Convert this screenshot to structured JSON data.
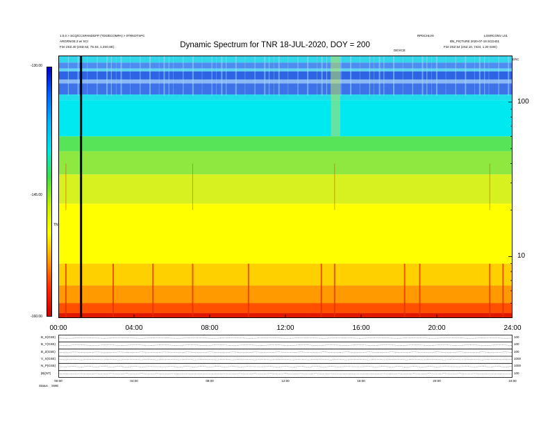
{
  "header": {
    "top_left_line1": "1.0.0 > SCQ/CCSPANDGFP (TDS/ECOMPA) > 0TRKDTSPC",
    "top_left_line2": "ARGRNGE.3 w/ SCI",
    "top_left_line3": "Fire   2SZ.40 (2SD.53, 7S.53, 1.2S0.SE)",
    "top_right_line1": "RPDCHLV0",
    "top_right_line1b": "LOSRCONV L01",
    "top_right_line2": "BN_PICTURE  2020-07-19 SCD401",
    "top_right_line3": "Fire   2SZ.54 (2SZ.10, 7424, 1.20 GSE)",
    "top_mid_small": "DEVICE",
    "corner_small": "ERC"
  },
  "chart_data": {
    "type": "heatmap",
    "title": "Dynamic Spectrum for TNR 18-JUL-2020, DOY = 200",
    "x_tick_labels": [
      "00:00",
      "04:00",
      "08:00",
      "12:00",
      "16:00",
      "20:00",
      "24:00"
    ],
    "x_range_hours": [
      0,
      24
    ],
    "y_scale": "log",
    "y_tick_labels": [
      "100",
      "10"
    ],
    "y_ticks": [
      100,
      10
    ],
    "y_range": [
      4,
      200
    ],
    "colorbar": {
      "label": "TNR",
      "ticks": [
        "-130.00",
        "-145.00",
        "-160.00"
      ],
      "range": [
        -160,
        -130
      ],
      "colors": [
        "#c80000",
        "#ff2800",
        "#ff9a00",
        "#ffff00",
        "#c8f000",
        "#40e040",
        "#00e6e6",
        "#00b4ff",
        "#0064ff",
        "#0000c8"
      ]
    },
    "bands": [
      {
        "from_mhz": 200,
        "to_mhz": 180,
        "color": "#33d6e8"
      },
      {
        "from_mhz": 180,
        "to_mhz": 165,
        "color": "#4f8cf2"
      },
      {
        "from_mhz": 165,
        "to_mhz": 158,
        "color": "#5fd4f0"
      },
      {
        "from_mhz": 158,
        "to_mhz": 140,
        "color": "#2e63e4"
      },
      {
        "from_mhz": 140,
        "to_mhz": 132,
        "color": "#8ab8f4"
      },
      {
        "from_mhz": 132,
        "to_mhz": 112,
        "color": "#3d72e8"
      },
      {
        "from_mhz": 112,
        "to_mhz": 103,
        "color": "#22dbeb"
      },
      {
        "from_mhz": 103,
        "to_mhz": 60,
        "color": "#00e8f0"
      },
      {
        "from_mhz": 60,
        "to_mhz": 48,
        "color": "#58e458"
      },
      {
        "from_mhz": 48,
        "to_mhz": 34,
        "color": "#8fe840"
      },
      {
        "from_mhz": 34,
        "to_mhz": 22,
        "color": "#d6f020"
      },
      {
        "from_mhz": 22,
        "to_mhz": 9,
        "color": "#ffff00"
      },
      {
        "from_mhz": 9,
        "to_mhz": 6.5,
        "color": "#ffd000"
      },
      {
        "from_mhz": 6.5,
        "to_mhz": 5,
        "color": "#ff9a00"
      },
      {
        "from_mhz": 5,
        "to_mhz": 4.3,
        "color": "#ff5000"
      },
      {
        "from_mhz": 4.3,
        "to_mhz": 4,
        "color": "#e01800"
      }
    ],
    "data_gap_hours": 1.2,
    "bursts_hours": [
      0.4,
      2.9,
      5.0,
      7.1,
      10.05,
      13.9,
      14.6,
      18.3,
      19.1,
      22.8,
      23.5
    ],
    "bottom_panel": {
      "x_tick_labels": [
        "00:00",
        "04:00",
        "08:00",
        "12:00",
        "16:00",
        "20:00",
        "24:00"
      ],
      "rows": [
        {
          "label": "B_X(GSE)",
          "right": "100"
        },
        {
          "label": "B_Y(GSE)",
          "right": "100"
        },
        {
          "label": "B_Z(GSE)",
          "right": "100"
        },
        {
          "label": "V_X(GSE)",
          "right": "1000"
        },
        {
          "label": "N_P(GSE)",
          "right": "1000"
        },
        {
          "label": "|B|(NT)",
          "right": "100"
        }
      ],
      "footer_left": "Status",
      "footer_left2": "SWE"
    }
  }
}
